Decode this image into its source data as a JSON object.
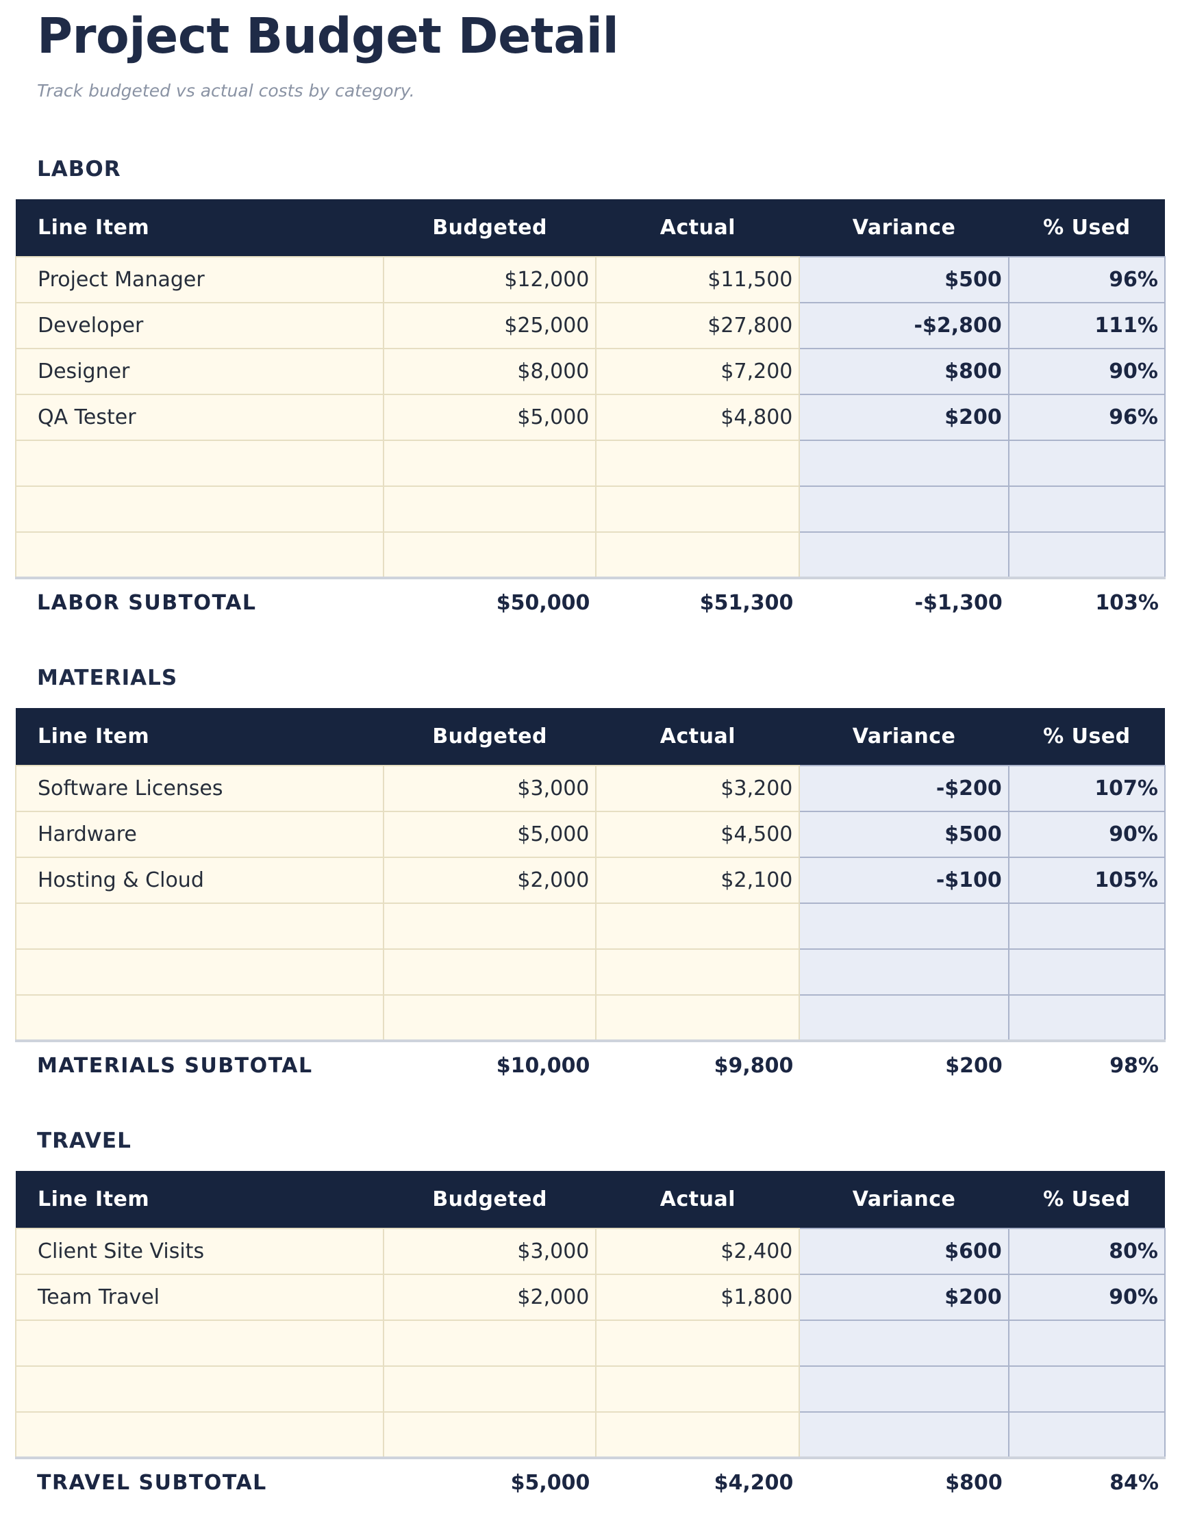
{
  "page": {
    "title": "Project Budget Detail",
    "subtitle": "Track budgeted vs actual costs by category."
  },
  "table": {
    "columns": [
      "Line Item",
      "Budgeted",
      "Actual",
      "Variance",
      "% Used"
    ]
  },
  "colors": {
    "header_bg": "#17243e",
    "heading_navy": "#1f2b47",
    "bold_value_navy": "#1b2642",
    "cream_bg": "#fffaec",
    "cream_border": "#e6dec2",
    "lavender_bg": "#e9edf6",
    "lavender_border": "#abb4cb",
    "subtotal_top_border": "#ced3dc",
    "subtitle_gray": "#8a93a4"
  },
  "sections": [
    {
      "name": "LABOR",
      "rows": [
        {
          "item": "Project Manager",
          "budgeted": "$12,000",
          "actual": "$11,500",
          "variance": "$500",
          "used": "96%"
        },
        {
          "item": "Developer",
          "budgeted": "$25,000",
          "actual": "$27,800",
          "variance": "-$2,800",
          "used": "111%"
        },
        {
          "item": "Designer",
          "budgeted": "$8,000",
          "actual": "$7,200",
          "variance": "$800",
          "used": "90%"
        },
        {
          "item": "QA Tester",
          "budgeted": "$5,000",
          "actual": "$4,800",
          "variance": "$200",
          "used": "96%"
        },
        {
          "item": "",
          "budgeted": "",
          "actual": "",
          "variance": "",
          "used": ""
        },
        {
          "item": "",
          "budgeted": "",
          "actual": "",
          "variance": "",
          "used": ""
        },
        {
          "item": "",
          "budgeted": "",
          "actual": "",
          "variance": "",
          "used": ""
        }
      ],
      "subtotal": {
        "label": "LABOR SUBTOTAL",
        "budgeted": "$50,000",
        "actual": "$51,300",
        "variance": "-$1,300",
        "used": "103%"
      }
    },
    {
      "name": "MATERIALS",
      "rows": [
        {
          "item": "Software Licenses",
          "budgeted": "$3,000",
          "actual": "$3,200",
          "variance": "-$200",
          "used": "107%"
        },
        {
          "item": "Hardware",
          "budgeted": "$5,000",
          "actual": "$4,500",
          "variance": "$500",
          "used": "90%"
        },
        {
          "item": "Hosting & Cloud",
          "budgeted": "$2,000",
          "actual": "$2,100",
          "variance": "-$100",
          "used": "105%"
        },
        {
          "item": "",
          "budgeted": "",
          "actual": "",
          "variance": "",
          "used": ""
        },
        {
          "item": "",
          "budgeted": "",
          "actual": "",
          "variance": "",
          "used": ""
        },
        {
          "item": "",
          "budgeted": "",
          "actual": "",
          "variance": "",
          "used": ""
        }
      ],
      "subtotal": {
        "label": "MATERIALS SUBTOTAL",
        "budgeted": "$10,000",
        "actual": "$9,800",
        "variance": "$200",
        "used": "98%"
      }
    },
    {
      "name": "TRAVEL",
      "rows": [
        {
          "item": "Client Site Visits",
          "budgeted": "$3,000",
          "actual": "$2,400",
          "variance": "$600",
          "used": "80%"
        },
        {
          "item": "Team Travel",
          "budgeted": "$2,000",
          "actual": "$1,800",
          "variance": "$200",
          "used": "90%"
        },
        {
          "item": "",
          "budgeted": "",
          "actual": "",
          "variance": "",
          "used": ""
        },
        {
          "item": "",
          "budgeted": "",
          "actual": "",
          "variance": "",
          "used": ""
        },
        {
          "item": "",
          "budgeted": "",
          "actual": "",
          "variance": "",
          "used": ""
        }
      ],
      "subtotal": {
        "label": "TRAVEL SUBTOTAL",
        "budgeted": "$5,000",
        "actual": "$4,200",
        "variance": "$800",
        "used": "84%"
      }
    }
  ]
}
